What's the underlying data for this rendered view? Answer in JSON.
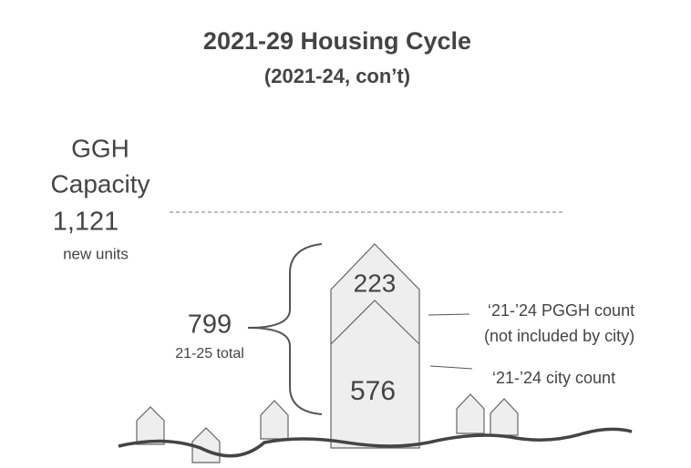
{
  "title": "2021-29 Housing Cycle",
  "subtitle": "(2021-24, con’t)",
  "capacity": {
    "label_lines": [
      "GGH",
      "Capacity"
    ],
    "value": "1,121",
    "unit": "new units"
  },
  "total": {
    "value": "799",
    "label": "21-25 total"
  },
  "segments": [
    {
      "value": "223",
      "label_lines": [
        "‘21-’24 PGGH count",
        "(not included by city)"
      ]
    },
    {
      "value": "576",
      "label_lines": [
        "‘21-’24 city count"
      ]
    }
  ]
}
